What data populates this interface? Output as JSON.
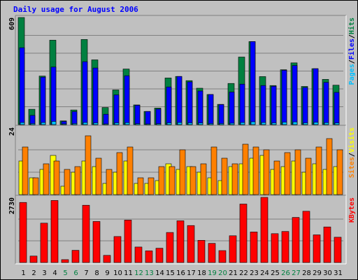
{
  "chart_data": {
    "type": "bar",
    "title": "Daily usage for August 2006",
    "categories": [
      "1",
      "2",
      "3",
      "4",
      "5",
      "6",
      "7",
      "8",
      "9",
      "10",
      "11",
      "12",
      "13",
      "14",
      "15",
      "16",
      "17",
      "18",
      "19",
      "20",
      "21",
      "22",
      "23",
      "24",
      "25",
      "26",
      "27",
      "28",
      "29",
      "30",
      "31"
    ],
    "weekend_days": [
      "5",
      "6",
      "12",
      "13",
      "19",
      "20",
      "26",
      "27"
    ],
    "colors": {
      "title": "#0000ff",
      "hits": "#008040",
      "files": "#0000ff",
      "pages": "#00c0ff",
      "visits": "#ffff00",
      "sites": "#ff8000",
      "kbytes": "#ff0000",
      "weekday_tick": "#000000",
      "weekend_tick": "#008040",
      "background": "#c0c0c0"
    },
    "panels": [
      {
        "name": "hits-files-pages",
        "ymax_label": "609",
        "ylim": [
          0,
          609
        ],
        "legend": [
          {
            "label": "Hits",
            "color": "#008040"
          },
          {
            "label": "/",
            "color": "#000000"
          },
          {
            "label": "Files",
            "color": "#0000ff"
          },
          {
            "label": "/",
            "color": "#000000"
          },
          {
            "label": "Pages",
            "color": "#00c0ff"
          }
        ],
        "series": [
          {
            "name": "Hits",
            "color": "#008040",
            "values": [
              609,
              87,
              276,
              480,
              21,
              83,
              484,
              368,
              97,
              197,
              316,
              112,
              75,
              94,
              265,
              274,
              250,
              207,
              171,
              115,
              234,
              384,
              472,
              273,
              222,
              312,
              351,
              217,
              318,
              257,
              224
            ]
          },
          {
            "name": "Files",
            "color": "#0000ff",
            "values": [
              437,
              52,
              270,
              327,
              18,
              74,
              358,
              322,
              59,
              169,
              278,
              110,
              75,
              88,
              214,
              274,
              243,
              191,
              171,
              114,
              185,
              230,
              472,
              222,
              218,
              309,
              336,
              211,
              318,
              240,
              183
            ]
          },
          {
            "name": "Pages",
            "color": "#00c0ff",
            "values": [
              12,
              6,
              12,
              18,
              2,
              6,
              12,
              10,
              4,
              10,
              11,
              5,
              4,
              5,
              10,
              12,
              10,
              9,
              6,
              6,
              8,
              12,
              16,
              12,
              10,
              14,
              15,
              10,
              13,
              11,
              9
            ]
          }
        ]
      },
      {
        "name": "visits-sites",
        "ymax_label": "24",
        "ylim": [
          0,
          24
        ],
        "legend": [
          {
            "label": "Visits",
            "color": "#ffff00"
          },
          {
            "label": "/",
            "color": "#000000"
          },
          {
            "label": "Sites",
            "color": "#ff8000"
          }
        ],
        "series": [
          {
            "name": "Visits",
            "color": "#ffff00",
            "values": [
              12,
              6,
              9,
              14,
              3,
              8,
              12,
              10,
              4,
              8,
              12,
              4,
              4,
              5,
              11,
              9,
              10,
              8,
              6,
              5,
              10,
              11,
              13,
              14,
              9,
              10,
              12,
              8,
              11,
              9,
              10
            ]
          },
          {
            "name": "Sites",
            "color": "#ff8000",
            "values": [
              17,
              6,
              11,
              12,
              9,
              10,
              21,
              13,
              9,
              15,
              17,
              6,
              6,
              10,
              10,
              16,
              10,
              11,
              17,
              13,
              11,
              18,
              17,
              16,
              12,
              15,
              16,
              13,
              17,
              20,
              16
            ]
          }
        ]
      },
      {
        "name": "kbytes",
        "ymax_label": "2730",
        "ylim": [
          0,
          2730
        ],
        "legend": [
          {
            "label": "KBytes",
            "color": "#ff0000"
          }
        ],
        "series": [
          {
            "name": "KBytes",
            "color": "#ff0000",
            "values": [
              2520,
              270,
              1650,
              2600,
              120,
              510,
              2400,
              1720,
              300,
              1090,
              1780,
              650,
              490,
              600,
              1260,
              1750,
              1550,
              930,
              800,
              500,
              1120,
              2450,
              1280,
              2730,
              1210,
              1300,
              1890,
              2150,
              1160,
              1490,
              1060
            ]
          }
        ]
      }
    ]
  }
}
